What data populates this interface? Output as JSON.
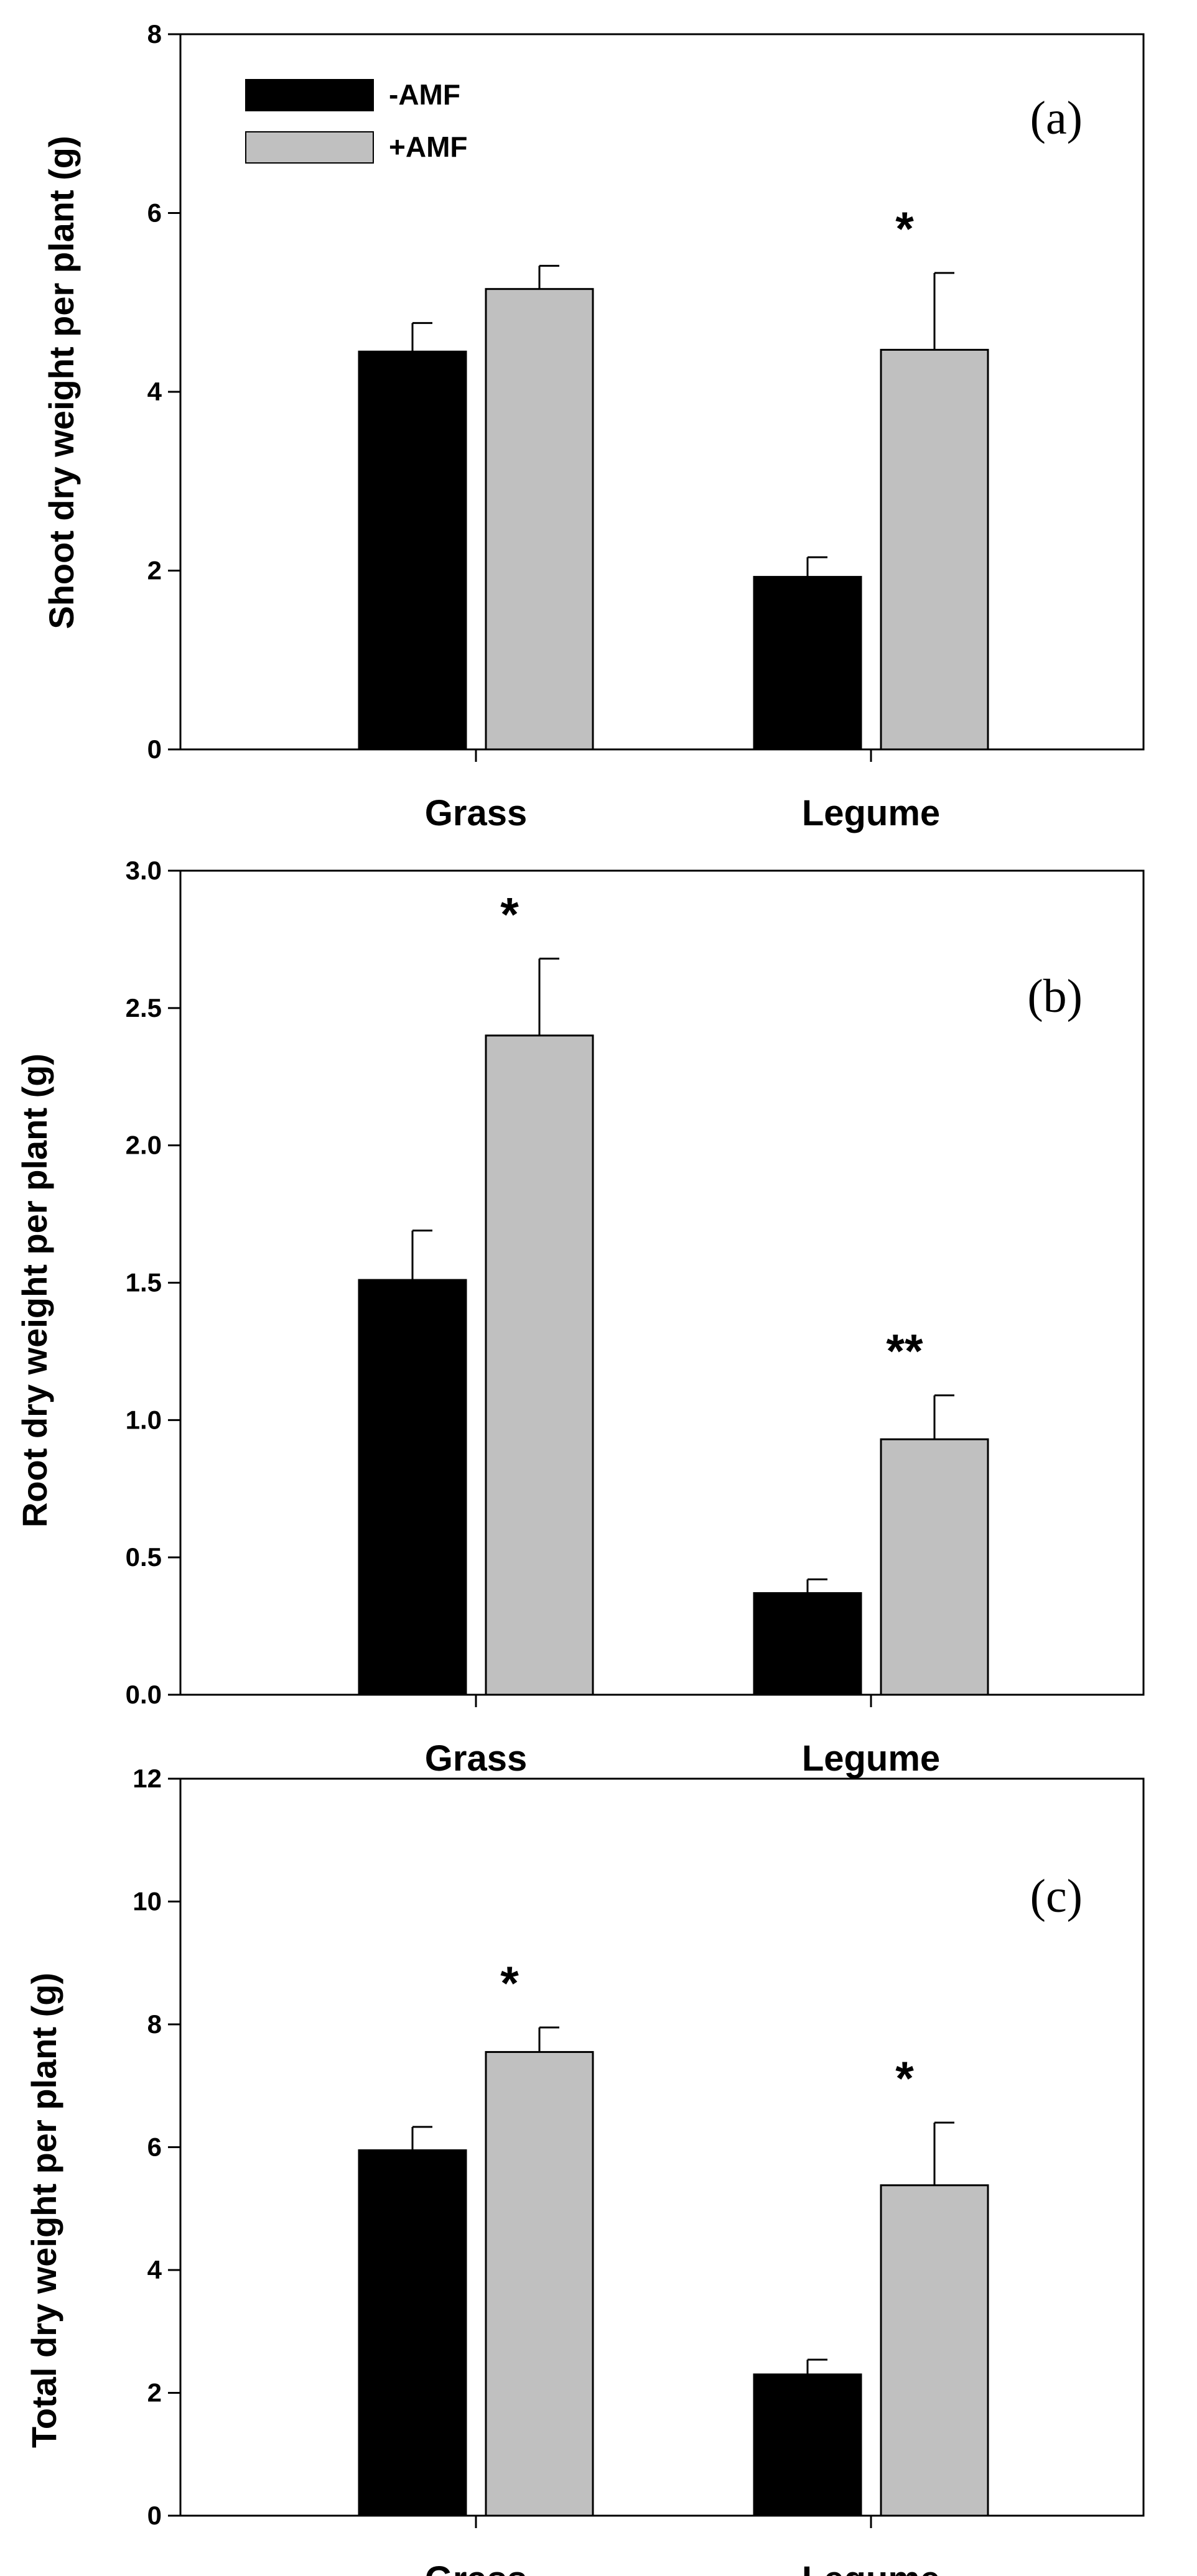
{
  "legend": [
    {
      "label": "-AMF",
      "color": "#000000"
    },
    {
      "label": "+AMF",
      "color": "#c0c0c0"
    }
  ],
  "chart_data": [
    {
      "type": "bar",
      "panel_label": "(a)",
      "ylabel": "Shoot dry weight per plant (g)",
      "categories": [
        "Grass",
        "Legume"
      ],
      "ylim": [
        0,
        8
      ],
      "yticks": [
        "0",
        "2",
        "4",
        "6",
        "8"
      ],
      "series": [
        {
          "name": "-AMF",
          "values": [
            4.45,
            1.93
          ],
          "errors": [
            0.32,
            0.22
          ]
        },
        {
          "name": "+AMF",
          "values": [
            5.15,
            4.47
          ],
          "errors": [
            0.26,
            0.86
          ]
        }
      ],
      "significance": [
        "",
        "*"
      ],
      "legend": "top-left"
    },
    {
      "type": "bar",
      "panel_label": "(b)",
      "ylabel": "Root dry weight per plant (g)",
      "categories": [
        "Grass",
        "Legume"
      ],
      "ylim": [
        0,
        3
      ],
      "yticks": [
        "0.0",
        "0.5",
        "1.0",
        "1.5",
        "2.0",
        "2.5",
        "3.0"
      ],
      "series": [
        {
          "name": "-AMF",
          "values": [
            1.51,
            0.37
          ],
          "errors": [
            0.18,
            0.05
          ]
        },
        {
          "name": "+AMF",
          "values": [
            2.4,
            0.93
          ],
          "errors": [
            0.28,
            0.16
          ]
        }
      ],
      "significance": [
        "*",
        "**"
      ]
    },
    {
      "type": "bar",
      "panel_label": "(c)",
      "ylabel": "Total dry weight per plant (g)",
      "categories": [
        "Grass",
        "Legume"
      ],
      "ylim": [
        0,
        12
      ],
      "yticks": [
        "0",
        "2",
        "4",
        "6",
        "8",
        "10",
        "12"
      ],
      "series": [
        {
          "name": "-AMF",
          "values": [
            5.95,
            2.3
          ],
          "errors": [
            0.38,
            0.24
          ]
        },
        {
          "name": "+AMF",
          "values": [
            7.55,
            5.38
          ],
          "errors": [
            0.4,
            1.02
          ]
        }
      ],
      "significance": [
        "*",
        "*"
      ]
    }
  ]
}
